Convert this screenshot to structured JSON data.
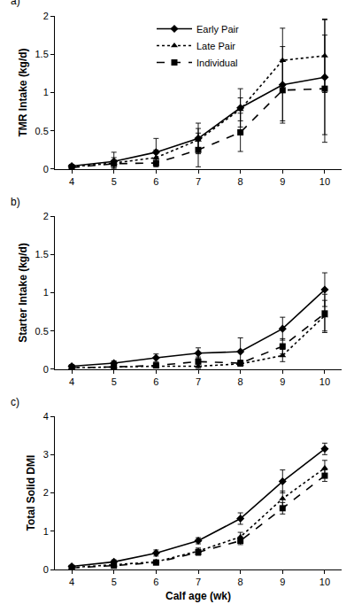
{
  "chart_data": [
    {
      "type": "line",
      "title": "a)",
      "y_label": "TMR Intake (kg/d)",
      "x": [
        4,
        5,
        6,
        7,
        8,
        9,
        10
      ],
      "xlim": [
        3.6,
        10.4
      ],
      "xticks": [
        4,
        5,
        6,
        7,
        8,
        9,
        10
      ],
      "ylim": [
        0,
        2
      ],
      "yticks": [
        0,
        0.5,
        1,
        1.5,
        2
      ],
      "grid": false,
      "legend": "top",
      "series": [
        {
          "name": "Early Pair",
          "color": "#000000",
          "marker": "diamond",
          "line_style": "solid",
          "values": [
            0.04,
            0.1,
            0.22,
            0.4,
            0.8,
            1.1,
            1.2
          ],
          "error": [
            0.02,
            0.12,
            0.18,
            0.2,
            0.25,
            0.5,
            0.75
          ]
        },
        {
          "name": "Late Pair",
          "color": "#000000",
          "marker": "triangle-up",
          "line_style": "dot",
          "values": [
            0.03,
            0.08,
            0.15,
            0.38,
            0.78,
            1.42,
            1.48
          ],
          "error": [
            0.02,
            0.07,
            0.1,
            0.15,
            0.15,
            0.42,
            0.48
          ]
        },
        {
          "name": "Individual",
          "color": "#000000",
          "marker": "square",
          "line_style": "dash",
          "values": [
            0.02,
            0.07,
            0.08,
            0.25,
            0.48,
            1.03,
            1.05
          ],
          "error": [
            0.01,
            0.05,
            0.05,
            0.22,
            0.25,
            0.4,
            0.7
          ]
        }
      ]
    },
    {
      "type": "line",
      "title": "b)",
      "y_label": "Starter Intake (kg/d)",
      "x": [
        4,
        5,
        6,
        7,
        8,
        9,
        10
      ],
      "xlim": [
        3.6,
        10.4
      ],
      "xticks": [
        4,
        5,
        6,
        7,
        8,
        9,
        10
      ],
      "ylim": [
        0,
        2
      ],
      "yticks": [
        0,
        0.5,
        1,
        1.5,
        2
      ],
      "grid": false,
      "series": [
        {
          "name": "Early Pair",
          "color": "#000000",
          "marker": "diamond",
          "line_style": "solid",
          "values": [
            0.04,
            0.08,
            0.15,
            0.21,
            0.23,
            0.53,
            1.04
          ],
          "error": [
            0.02,
            0.03,
            0.05,
            0.07,
            0.18,
            0.15,
            0.22
          ]
        },
        {
          "name": "Late Pair",
          "color": "#000000",
          "marker": "triangle-up",
          "line_style": "dot",
          "values": [
            0.02,
            0.03,
            0.04,
            0.04,
            0.07,
            0.18,
            0.7
          ],
          "error": [
            0.01,
            0.01,
            0.02,
            0.03,
            0.03,
            0.08,
            0.2
          ]
        },
        {
          "name": "Individual",
          "color": "#000000",
          "marker": "square",
          "line_style": "dash",
          "values": [
            0.02,
            0.03,
            0.05,
            0.1,
            0.08,
            0.3,
            0.73
          ],
          "error": [
            0.01,
            0.02,
            0.03,
            0.06,
            0.04,
            0.1,
            0.25
          ]
        }
      ]
    },
    {
      "type": "line",
      "title": "c)",
      "y_label": "Total Solid DMI",
      "x_label": "Calf age (wk)",
      "x": [
        4,
        5,
        6,
        7,
        8,
        9,
        10
      ],
      "xlim": [
        3.6,
        10.4
      ],
      "xticks": [
        4,
        5,
        6,
        7,
        8,
        9,
        10
      ],
      "ylim": [
        0,
        4
      ],
      "yticks": [
        0,
        1,
        2,
        3,
        4
      ],
      "grid": false,
      "series": [
        {
          "name": "Early Pair",
          "color": "#000000",
          "marker": "diamond",
          "line_style": "solid",
          "values": [
            0.08,
            0.2,
            0.43,
            0.75,
            1.33,
            2.3,
            3.15
          ],
          "error": [
            0.02,
            0.05,
            0.08,
            0.08,
            0.15,
            0.3,
            0.15
          ]
        },
        {
          "name": "Late Pair",
          "color": "#000000",
          "marker": "triangle-up",
          "line_style": "dot",
          "values": [
            0.05,
            0.12,
            0.2,
            0.48,
            0.85,
            1.85,
            2.65
          ],
          "error": [
            0.02,
            0.03,
            0.05,
            0.08,
            0.12,
            0.2,
            0.2
          ]
        },
        {
          "name": "Individual",
          "color": "#000000",
          "marker": "square",
          "line_style": "dash",
          "values": [
            0.04,
            0.1,
            0.18,
            0.45,
            0.75,
            1.6,
            2.45
          ],
          "error": [
            0.02,
            0.03,
            0.05,
            0.08,
            0.1,
            0.15,
            0.15
          ]
        }
      ]
    }
  ]
}
